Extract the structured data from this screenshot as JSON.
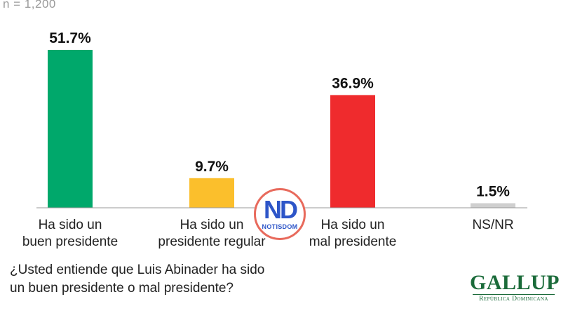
{
  "note": "n = 1,200",
  "question": {
    "line1": "¿Usted entiende que Luis Abinader ha sido",
    "line2": "un buen presidente o mal presidente?"
  },
  "logo": {
    "brand": "GALLUP",
    "subtitle": "República Dominicana"
  },
  "watermark": {
    "mark": "ND",
    "text": "NOTISDOM"
  },
  "chart_data": {
    "type": "bar",
    "categories": [
      [
        "Ha sido un",
        "buen presidente"
      ],
      [
        "Ha sido un",
        "presidente regular"
      ],
      [
        "Ha sido un",
        "mal presidente"
      ],
      [
        "NS/NR"
      ]
    ],
    "values": [
      51.7,
      9.7,
      36.9,
      1.5
    ],
    "value_labels": [
      "51.7%",
      "9.7%",
      "36.9%",
      "1.5%"
    ],
    "colors": [
      "#00a86b",
      "#fbbf2c",
      "#ef2b2d",
      "#cfcfcf"
    ],
    "ylim": [
      0,
      60
    ],
    "axis": {
      "y_visible": false,
      "grid": false,
      "baseline_color": "#9a9a9a"
    },
    "label_color": "#222222",
    "value_label_color": "#111111"
  }
}
